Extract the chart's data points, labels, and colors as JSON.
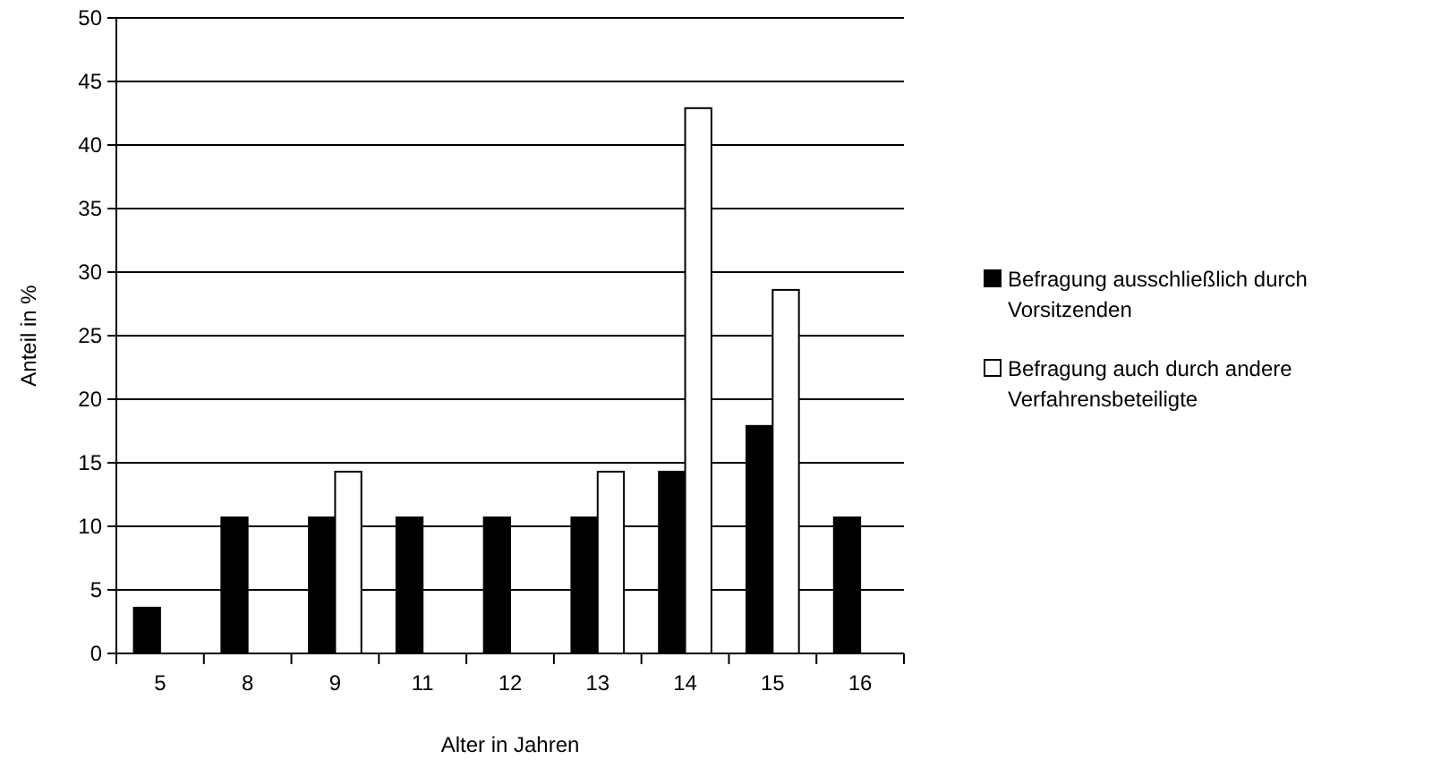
{
  "chart_data": {
    "type": "bar",
    "xlabel": "Alter in Jahren",
    "ylabel": "Anteil in %",
    "categories": [
      "5",
      "8",
      "9",
      "11",
      "12",
      "13",
      "14",
      "15",
      "16"
    ],
    "series": [
      {
        "name": "Befragung ausschließlich durch Vorsitzenden",
        "color": "#000000",
        "values": [
          3.6,
          10.7,
          10.7,
          10.7,
          10.7,
          10.7,
          14.3,
          17.9,
          10.7
        ]
      },
      {
        "name": "Befragung auch durch andere Verfahrensbeteiligte",
        "color": "#ffffff",
        "values": [
          null,
          null,
          14.3,
          null,
          null,
          14.3,
          42.9,
          28.6,
          null
        ]
      }
    ],
    "ylim": [
      0,
      50
    ],
    "yticks": [
      0,
      5,
      10,
      15,
      20,
      25,
      30,
      35,
      40,
      45,
      50
    ],
    "grid": "y",
    "legend": "right"
  }
}
